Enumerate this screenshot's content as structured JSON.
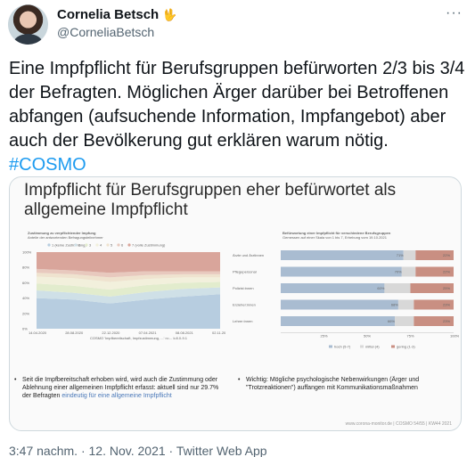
{
  "author": {
    "display_name": "Cornelia Betsch",
    "emoji": "🖖",
    "handle": "@CorneliaBetsch"
  },
  "tweet": {
    "text": "Eine Impfpflicht für Berufsgruppen befürworten 2/3 bis 3/4 der Befragten. Möglichen Ärger darüber bei Betroffenen abfangen (aufsuchende Information, Impfangebot) aber auch der Bevölkerung gut erklären warum nötig.",
    "hashtag": "#COSMO"
  },
  "slide": {
    "title_line1": "Impfpflicht für Berufsgruppen eher befürwortet als",
    "title_line2": "allgemeine Impfpflicht",
    "left_chart_title": "Zustimmung zu verpflichtender Impfung",
    "left_chart_subtitle": "Anteile der antwortenden Befragungsteilnehmer",
    "left_legend": [
      "1 (keine Zustimmung)",
      "2",
      "3",
      "4",
      "5",
      "6",
      "7 (volle Zustimmung)"
    ],
    "left_y_ticks": [
      "100%",
      "80%",
      "60%",
      "40%",
      "20%",
      "0%"
    ],
    "left_x_ticks": [
      "14.04.2020",
      "28.08.2020",
      "22.12.2020",
      "07.04.2021",
      "08.08.2021",
      "02.11.2021"
    ],
    "left_source": "COSMO 'Impfbereitschaft, Impfzustimmung, ...' n=... k:8.0-9.1",
    "bullet_left_text": "Seit die Impfbereitschaft erhoben wird, wird auch die Zustimmung oder Ablehnung einer allgemeinen Impfpflicht erfasst: aktuell sind nur 29.7% der Befragten",
    "bullet_left_highlight": "eindeutig für eine allgemeine Impfpflicht",
    "bullet_right_text": "Wichtig: Mögliche psychologische Nebenwirkungen (Ärger und \"Trotzreaktionen\") auffangen mit Kommunikationsmaßnahmen",
    "footer_note": "www.corona-monitor.de | COSMO 54/55 | KW44 2021"
  },
  "chart_data": [
    {
      "type": "area",
      "title": "Zustimmung zu verpflichtender Impfung",
      "ylabel": "",
      "ylim": [
        0,
        100
      ],
      "x": [
        "14.04.2020",
        "28.08.2020",
        "22.12.2020",
        "07.04.2021",
        "08.08.2021",
        "02.11.2021"
      ],
      "series": [
        {
          "name": "7 (volle Zustimmung)",
          "values": [
            40,
            38,
            33,
            38,
            42,
            45
          ]
        },
        {
          "name": "6",
          "values": [
            10,
            9,
            9,
            10,
            10,
            9
          ]
        },
        {
          "name": "5",
          "values": [
            9,
            9,
            9,
            9,
            8,
            7
          ]
        },
        {
          "name": "4",
          "values": [
            9,
            10,
            10,
            8,
            7,
            6
          ]
        },
        {
          "name": "3",
          "values": [
            5,
            5,
            6,
            5,
            4,
            4
          ]
        },
        {
          "name": "2",
          "values": [
            5,
            5,
            6,
            5,
            4,
            4
          ]
        },
        {
          "name": "1 (keine Zustimmung)",
          "values": [
            22,
            24,
            27,
            25,
            25,
            25
          ]
        }
      ]
    },
    {
      "type": "bar",
      "title": "Befürwortung einer Impfpflicht für verschiedene Berufsgruppen",
      "subtitle": "Gemessen auf einer Skala von 1 bis 7, Erhebung vom 19.10.2021",
      "categories": [
        "Ärzte und Ärztinnen",
        "Pflegepersonal",
        "Polizist:innen",
        "Erzieher:innen",
        "Lehrer:innen"
      ],
      "series": [
        {
          "name": "hoch (5-7)",
          "values": [
            71,
            70,
            60,
            68,
            66
          ]
        },
        {
          "name": "mittel (4)",
          "values": [
            7,
            8,
            15,
            9,
            11
          ]
        },
        {
          "name": "gering (1-3)",
          "values": [
            22,
            22,
            25,
            23,
            23
          ]
        }
      ],
      "x_ticks": [
        "25%",
        "50%",
        "75%",
        "100%"
      ],
      "colors": [
        "#a9bcd1",
        "#d8d8d8",
        "#c98f82"
      ]
    }
  ],
  "timestamp": {
    "time": "3:47 nachm.",
    "date": "12. Nov. 2021",
    "app": "Twitter Web App"
  }
}
